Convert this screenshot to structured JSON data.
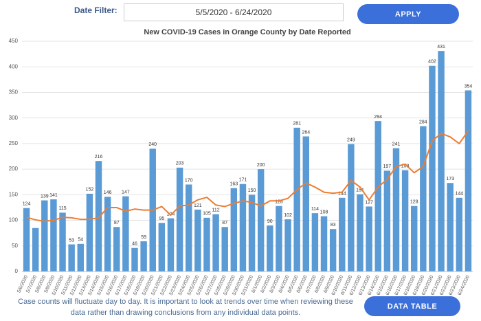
{
  "filter": {
    "label": "Date Filter:",
    "value": "5/5/2020 - 6/24/2020"
  },
  "buttons": {
    "apply": "APPLY",
    "data_table": "DATA TABLE"
  },
  "note": "Case counts will fluctuate day to day. It is important to look at trends over time when reviewing these data rather than drawing conclusions from any individual data points.",
  "chart_data": {
    "type": "bar",
    "title": "New COVID-19 Cases in Orange County by Date Reported",
    "categories": [
      "5/6/2020",
      "5/7/2020",
      "5/8/2020",
      "5/9/2020",
      "5/10/2020",
      "5/11/2020",
      "5/12/2020",
      "5/13/2020",
      "5/14/2020",
      "5/15/2020",
      "5/16/2020",
      "5/17/2020",
      "5/18/2020",
      "5/19/2020",
      "5/20/2020",
      "5/21/2020",
      "5/22/2020",
      "5/23/2020",
      "5/24/2020",
      "5/25/2020",
      "5/26/2020",
      "5/27/2020",
      "5/28/2020",
      "5/29/2020",
      "5/30/2020",
      "5/31/2020",
      "6/1/2020",
      "6/2/2020",
      "6/3/2020",
      "6/4/2020",
      "6/5/2020",
      "6/6/2020",
      "6/7/2020",
      "6/8/2020",
      "6/9/2020",
      "6/10/2020",
      "6/11/2020",
      "6/12/2020",
      "6/13/2020",
      "6/14/2020",
      "6/15/2020",
      "6/16/2020",
      "6/17/2020",
      "6/18/2020",
      "6/19/2020",
      "6/20/2020",
      "6/21/2020",
      "6/22/2020",
      "6/23/2020",
      "6/24/2020"
    ],
    "series": [
      {
        "type": "bar",
        "color": "#5b9bd5",
        "values": [
          124,
          85,
          139,
          141,
          115,
          53,
          54,
          152,
          216,
          146,
          87,
          147,
          46,
          59,
          240,
          95,
          104,
          203,
          170,
          121,
          105,
          112,
          87,
          163,
          171,
          150,
          200,
          90,
          128,
          102,
          281,
          264,
          114,
          108,
          83,
          144,
          249,
          151,
          127,
          294,
          197,
          241,
          198,
          128,
          284,
          402,
          431,
          173,
          144,
          354
        ],
        "value_labels": [
          "124",
          null,
          "139",
          "141",
          "115",
          "53",
          "54",
          "152",
          "216",
          "146",
          "87",
          "147",
          "46",
          "59",
          "240",
          "95",
          "104",
          "203",
          "170",
          "121",
          "105",
          "112",
          "87",
          "163",
          "171",
          "150",
          "200",
          "90",
          "128",
          "102",
          "281",
          "264",
          "114",
          "108",
          "83",
          "144",
          "249",
          "151",
          "127",
          "294",
          "197",
          "241",
          "198",
          "128",
          "284",
          "402",
          "431",
          "173",
          "144",
          "354"
        ]
      },
      {
        "type": "line",
        "color": "#ed7d31",
        "values": [
          106,
          101,
          98,
          100,
          106,
          105,
          102,
          102,
          105,
          125,
          125,
          118,
          122,
          120,
          120,
          127,
          110,
          128,
          130,
          140,
          145,
          130,
          127,
          133,
          138,
          135,
          128,
          138,
          138,
          143,
          160,
          173,
          165,
          155,
          153,
          155,
          178,
          165,
          140,
          165,
          180,
          205,
          210,
          193,
          205,
          255,
          270,
          263,
          250,
          275
        ]
      }
    ],
    "ylim": [
      0,
      450
    ],
    "yticks": [
      0,
      50,
      100,
      150,
      200,
      250,
      300,
      350,
      400,
      450
    ],
    "grid": true
  }
}
